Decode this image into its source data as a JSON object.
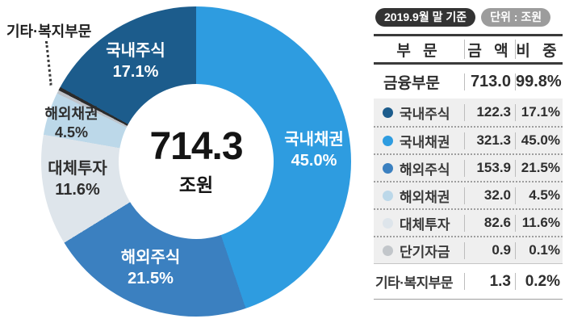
{
  "chart_data": {
    "type": "pie",
    "style": "donut",
    "title": "",
    "unit": "조원",
    "center": {
      "value": "714.3",
      "unit": "조원"
    },
    "segments": [
      {
        "label": "국내채권",
        "value": 321.3,
        "pct": 45.0,
        "pct_text": "45.0%",
        "color": "#2E9CE0"
      },
      {
        "label": "해외주식",
        "value": 153.9,
        "pct": 21.5,
        "pct_text": "21.5%",
        "color": "#3B80C0"
      },
      {
        "label": "대체투자",
        "value": 82.6,
        "pct": 11.6,
        "pct_text": "11.6%",
        "color": "#DEE5EB"
      },
      {
        "label": "해외채권",
        "value": 32.0,
        "pct": 4.5,
        "pct_text": "4.5%",
        "color": "#BCD8E9"
      },
      {
        "label": "단기자금",
        "value": 0.9,
        "pct": 0.1,
        "pct_text": "0.1%",
        "color": "#BDC2C8"
      },
      {
        "label": "기타·복지부문",
        "value": 1.3,
        "pct": 0.2,
        "pct_text": "0.2%",
        "color": "#2B2B2B"
      },
      {
        "label": "국내주식",
        "value": 122.3,
        "pct": 17.1,
        "pct_text": "17.1%",
        "color": "#1C5C8C"
      }
    ],
    "legend_position": "right-table"
  },
  "header": {
    "date_badge": "2019.9월 말 기준",
    "unit_badge": "단위 : 조원"
  },
  "table": {
    "columns": [
      "부 문",
      "금 액",
      "비 중"
    ],
    "total_row": {
      "label": "금융부문",
      "amount": "713.0",
      "pct": "99.8%"
    },
    "rows": [
      {
        "label": "국내주식",
        "amount": "122.3",
        "pct": "17.1%",
        "bullet": "#1C5C8C"
      },
      {
        "label": "국내채권",
        "amount": "321.3",
        "pct": "45.0%",
        "bullet": "#2E9CE0"
      },
      {
        "label": "해외주식",
        "amount": "153.9",
        "pct": "21.5%",
        "bullet": "#3B80C0"
      },
      {
        "label": "해외채권",
        "amount": "32.0",
        "pct": "4.5%",
        "bullet": "#BCD8E9"
      },
      {
        "label": "대체투자",
        "amount": "82.6",
        "pct": "11.6%",
        "bullet": "#DEE5EB"
      },
      {
        "label": "단기자금",
        "amount": "0.9",
        "pct": "0.1%",
        "bullet": "#C2C6CA"
      }
    ],
    "other_row": {
      "label": "기타·복지부문",
      "amount": "1.3",
      "pct": "0.2%"
    }
  }
}
